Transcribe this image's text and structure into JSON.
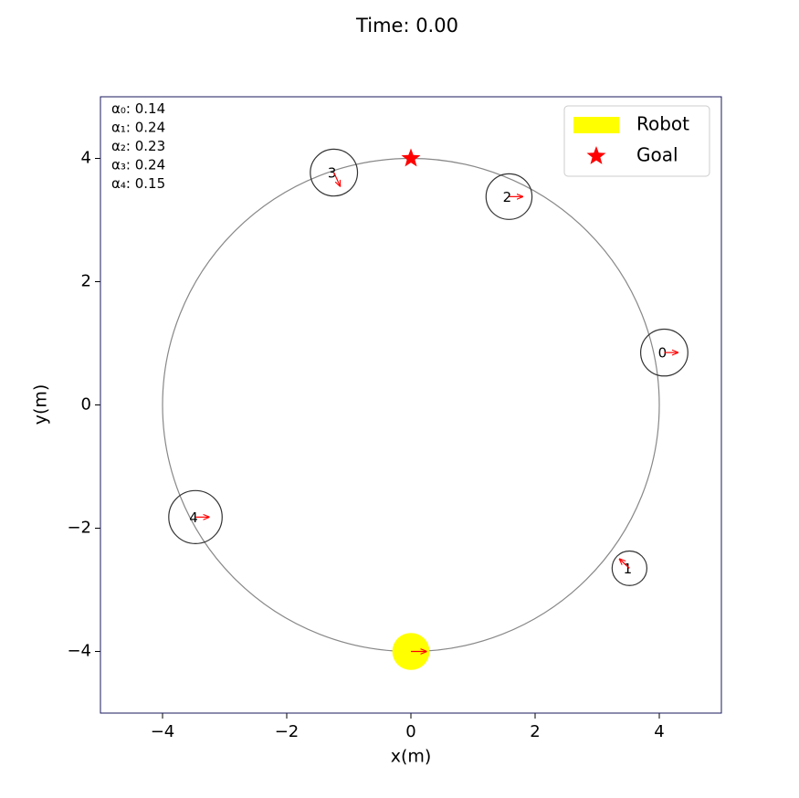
{
  "chart_data": {
    "type": "crowd",
    "title": "Time: 0.00",
    "x_label": "x(m)",
    "y_label": "y(m)",
    "xlim": [
      -5,
      5
    ],
    "ylim": [
      -5,
      5
    ],
    "xticks": [
      {
        "value": -4,
        "label": "−4"
      },
      {
        "value": -2,
        "label": "−2"
      },
      0,
      2,
      4
    ],
    "yticks": [
      {
        "value": -4,
        "label": "−4"
      },
      {
        "value": -2,
        "label": "−2"
      },
      0,
      2,
      4
    ],
    "path_radius": 4,
    "robot": {
      "name": "Robot",
      "color": "#ffff00",
      "x": 0,
      "y": -4,
      "radius": 0.3,
      "vx": 0.25,
      "vy": 0
    },
    "goal": {
      "name": "Goal",
      "color": "#ff0000",
      "x": 0,
      "y": 4
    },
    "humans": {
      "labels": [
        "0",
        "1",
        "2",
        "3",
        "4"
      ],
      "x": [
        4.08,
        3.52,
        1.58,
        -1.24,
        -3.47
      ],
      "y": [
        0.85,
        -2.65,
        3.38,
        3.77,
        -1.82
      ],
      "radius": [
        0.38,
        0.28,
        0.37,
        0.38,
        0.43
      ],
      "vx": [
        0.22,
        -0.16,
        0.22,
        0.1,
        0.22
      ],
      "vy": [
        0,
        0.15,
        0,
        -0.22,
        0
      ]
    },
    "attention": [
      {
        "label": "α₀",
        "value": 0.14
      },
      {
        "label": "α₁",
        "value": 0.24
      },
      {
        "label": "α₂",
        "value": 0.23
      },
      {
        "label": "α₃",
        "value": 0.24
      },
      {
        "label": "α₄",
        "value": 0.15
      }
    ]
  }
}
